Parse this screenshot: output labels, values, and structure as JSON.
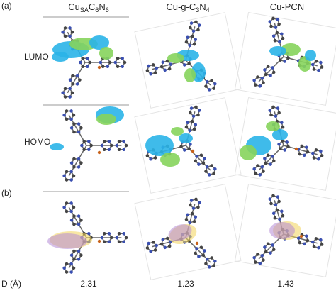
{
  "panel_labels": [
    "(a)",
    "(b)"
  ],
  "columns": [
    [
      [
        "Cu",
        "SA"
      ],
      [
        "C",
        "6"
      ],
      [
        "N",
        "6"
      ]
    ],
    [
      [
        "Cu-g-C",
        "3"
      ],
      [
        "N",
        "4"
      ]
    ],
    [
      [
        "Cu-PCN"
      ]
    ]
  ],
  "rows": [
    "LUMO",
    "HOMO"
  ],
  "distance": {
    "label": "D (Å)",
    "values": [
      "2.31",
      "1.23",
      "1.43"
    ]
  }
}
